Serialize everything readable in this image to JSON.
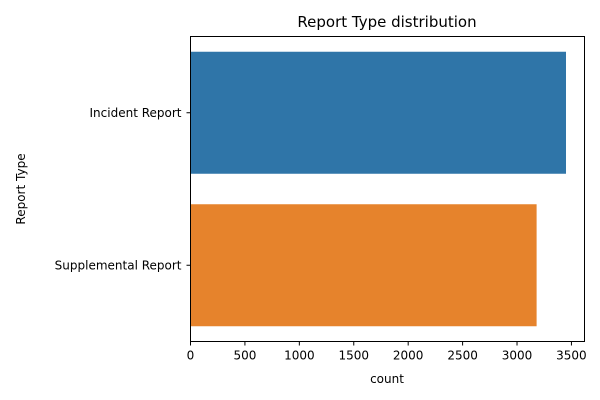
{
  "chart_data": {
    "type": "bar",
    "orientation": "horizontal",
    "title": "Report Type distribution",
    "xlabel": "count",
    "ylabel": "Report Type",
    "categories": [
      "Incident Report",
      "Supplemental Report"
    ],
    "values": [
      3450,
      3180
    ],
    "colors": [
      "#2f75a8",
      "#e6832c"
    ],
    "xlim": [
      0,
      3620
    ],
    "xticks": [
      0,
      500,
      1000,
      1500,
      2000,
      2500,
      3000,
      3500
    ],
    "grid": false,
    "legend": "none"
  }
}
